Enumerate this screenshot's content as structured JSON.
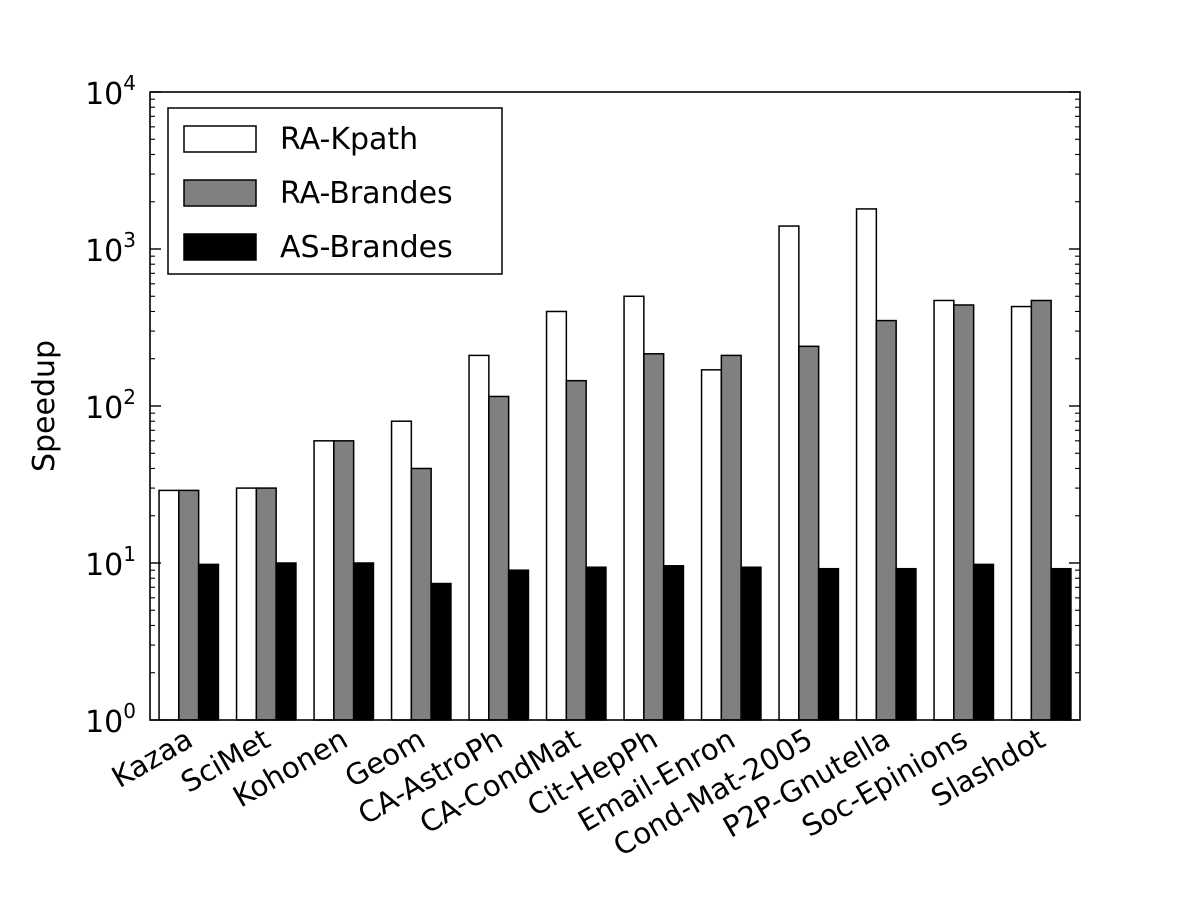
{
  "chart_data": {
    "type": "bar",
    "title": "",
    "xlabel": "",
    "ylabel": "Speedup",
    "yscale": "log",
    "ylim": [
      1,
      10000
    ],
    "yticks": [
      {
        "value": 1,
        "base": "10",
        "exp": "0"
      },
      {
        "value": 10,
        "base": "10",
        "exp": "1"
      },
      {
        "value": 100,
        "base": "10",
        "exp": "2"
      },
      {
        "value": 1000,
        "base": "10",
        "exp": "3"
      },
      {
        "value": 10000,
        "base": "10",
        "exp": "4"
      }
    ],
    "grid": false,
    "legend_position": "top-left",
    "categories": [
      "Kazaa",
      "SciMet",
      "Kohonen",
      "Geom",
      "CA-AstroPh",
      "CA-CondMat",
      "Cit-HepPh",
      "Email-Enron",
      "Cond-Mat-2005",
      "P2P-Gnutella",
      "Soc-Epinions",
      "Slashdot"
    ],
    "series": [
      {
        "name": "RA-Kpath",
        "color": "#ffffff",
        "values": [
          29,
          30,
          60,
          80,
          210,
          400,
          500,
          170,
          1400,
          1800,
          470,
          430
        ]
      },
      {
        "name": "RA-Brandes",
        "color": "#808080",
        "values": [
          29,
          30,
          60,
          40,
          115,
          145,
          215,
          210,
          240,
          350,
          440,
          470
        ]
      },
      {
        "name": "AS-Brandes",
        "color": "#000000",
        "values": [
          9.8,
          10,
          10,
          7.4,
          9,
          9.4,
          9.6,
          9.4,
          9.2,
          9.2,
          9.8,
          9.2
        ]
      }
    ]
  }
}
